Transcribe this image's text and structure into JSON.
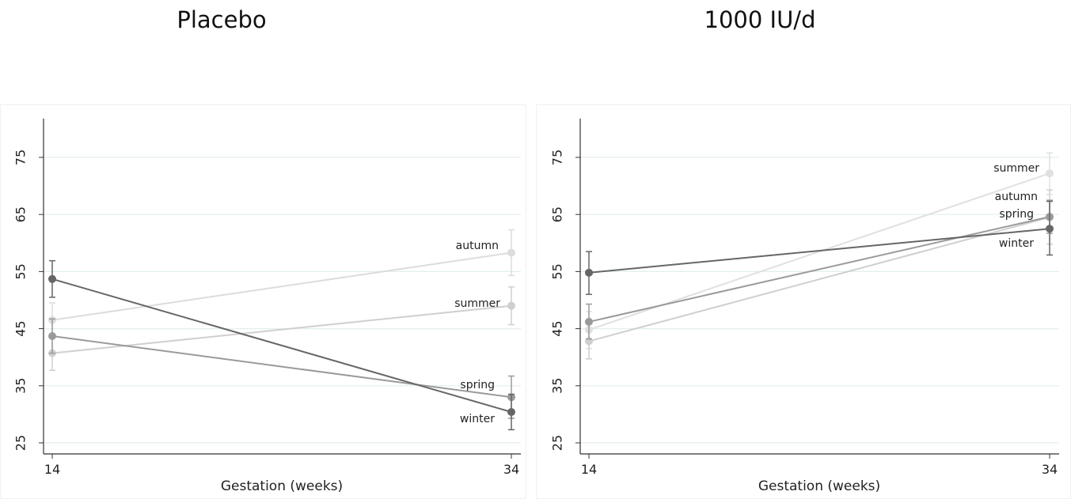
{
  "chart_data": [
    {
      "type": "line",
      "title": "Placebo",
      "xlabel": "Gestation (weeks)",
      "ylabel": "",
      "x": [
        14,
        34
      ],
      "ylim": [
        25,
        80
      ],
      "yticks": [
        25,
        35,
        45,
        55,
        65,
        75
      ],
      "grid": true,
      "series": [
        {
          "name": "autumn",
          "values": [
            46.5,
            58.3
          ],
          "err_low": [
            43.5,
            54.3
          ],
          "err_high": [
            49.5,
            62.3
          ],
          "color": "#dcdcdc"
        },
        {
          "name": "summer",
          "values": [
            40.7,
            49.0
          ],
          "err_low": [
            37.7,
            45.7
          ],
          "err_high": [
            43.7,
            52.3
          ],
          "color": "#cfcfcf"
        },
        {
          "name": "spring",
          "values": [
            43.7,
            33.0
          ],
          "err_low": [
            40.7,
            29.3
          ],
          "err_high": [
            46.7,
            36.7
          ],
          "color": "#9a9a9a"
        },
        {
          "name": "winter",
          "values": [
            53.7,
            30.4
          ],
          "err_low": [
            50.5,
            27.3
          ],
          "err_high": [
            56.9,
            33.5
          ],
          "color": "#666666"
        }
      ]
    },
    {
      "type": "line",
      "title": "1000 IU/d",
      "xlabel": "Gestation (weeks)",
      "ylabel": "",
      "x": [
        14,
        34
      ],
      "ylim": [
        25,
        80
      ],
      "yticks": [
        25,
        35,
        45,
        55,
        65,
        75
      ],
      "grid": true,
      "series": [
        {
          "name": "summer",
          "values": [
            44.8,
            72.2
          ],
          "err_low": [
            41.5,
            68.5
          ],
          "err_high": [
            48.0,
            75.8
          ],
          "color": "#e0e0e0"
        },
        {
          "name": "autumn",
          "values": [
            42.8,
            64.5
          ],
          "err_low": [
            39.7,
            59.8
          ],
          "err_high": [
            46.0,
            69.3
          ],
          "color": "#cfcfcf"
        },
        {
          "name": "spring",
          "values": [
            46.2,
            64.6
          ],
          "err_low": [
            43.2,
            61.7
          ],
          "err_high": [
            49.3,
            67.5
          ],
          "color": "#9a9a9a"
        },
        {
          "name": "winter",
          "values": [
            54.8,
            62.5
          ],
          "err_low": [
            51.0,
            57.9
          ],
          "err_high": [
            58.5,
            67.3
          ],
          "color": "#666666"
        }
      ]
    }
  ]
}
